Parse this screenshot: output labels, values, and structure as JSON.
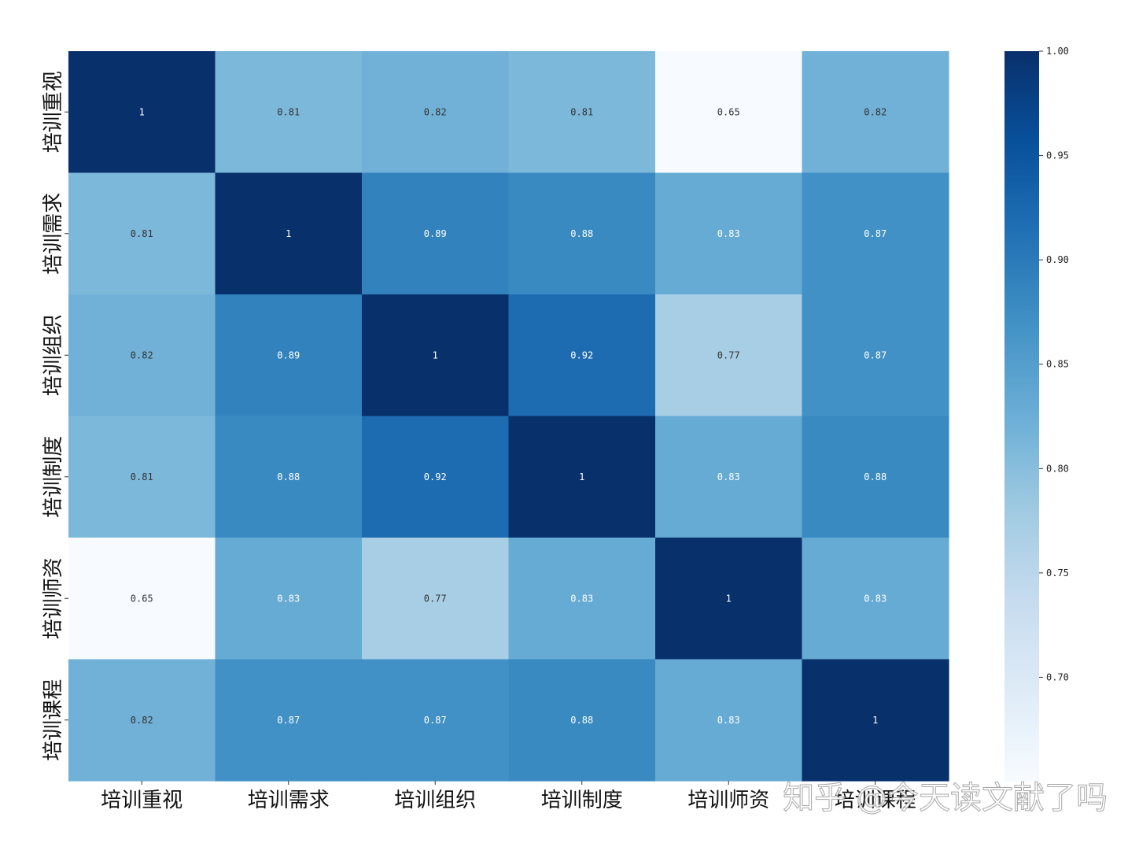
{
  "chart_data": {
    "type": "heatmap",
    "categories": [
      "培训重视",
      "培训需求",
      "培训组织",
      "培训制度",
      "培训师资",
      "培训课程"
    ],
    "values": [
      [
        1,
        0.81,
        0.82,
        0.81,
        0.65,
        0.82
      ],
      [
        0.81,
        1,
        0.89,
        0.88,
        0.83,
        0.87
      ],
      [
        0.82,
        0.89,
        1,
        0.92,
        0.77,
        0.87
      ],
      [
        0.81,
        0.88,
        0.92,
        1,
        0.83,
        0.88
      ],
      [
        0.65,
        0.83,
        0.77,
        0.83,
        1,
        0.83
      ],
      [
        0.82,
        0.87,
        0.87,
        0.88,
        0.83,
        1
      ]
    ],
    "cell_labels": [
      [
        "1",
        "0.81",
        "0.82",
        "0.81",
        "0.65",
        "0.82"
      ],
      [
        "0.81",
        "1",
        "0.89",
        "0.88",
        "0.83",
        "0.87"
      ],
      [
        "0.82",
        "0.89",
        "1",
        "0.92",
        "0.77",
        "0.87"
      ],
      [
        "0.81",
        "0.88",
        "0.92",
        "1",
        "0.83",
        "0.88"
      ],
      [
        "0.65",
        "0.83",
        "0.77",
        "0.83",
        "1",
        "0.83"
      ],
      [
        "0.82",
        "0.87",
        "0.87",
        "0.88",
        "0.83",
        "1"
      ]
    ],
    "colormap": "Blues",
    "vmin": 0.65,
    "vmax": 1.0,
    "colorbar_ticks": [
      "0.70",
      "0.75",
      "0.80",
      "0.85",
      "0.90",
      "0.95",
      "1.00"
    ],
    "colorbar_tick_values": [
      0.7,
      0.75,
      0.8,
      0.85,
      0.9,
      0.95,
      1.0
    ],
    "colorbar_placement": "right",
    "grid": false
  },
  "watermark": "知乎 @今天读文献了吗",
  "colors": {
    "blues_stops": [
      "#f7fbff",
      "#deebf7",
      "#c6dbef",
      "#9ecae1",
      "#6baed6",
      "#4292c6",
      "#2171b5",
      "#08519c",
      "#08306b"
    ],
    "text_dark": "#333333",
    "text_light": "#ffffff"
  }
}
